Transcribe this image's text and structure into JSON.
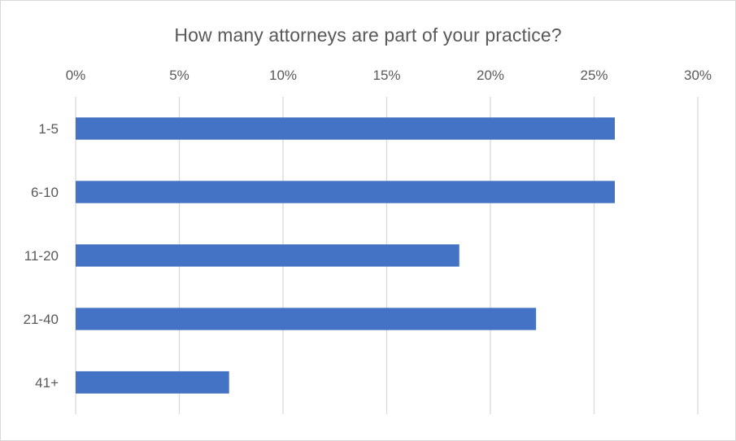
{
  "chart_data": {
    "type": "bar",
    "orientation": "horizontal",
    "title": "How many attorneys are part of your practice?",
    "categories": [
      "1-5",
      "6-10",
      "11-20",
      "21-40",
      "41+"
    ],
    "values": [
      26,
      26,
      18.5,
      22.2,
      7.4
    ],
    "value_unit": "%",
    "xlim": [
      0,
      30
    ],
    "x_ticks": [
      "0%",
      "5%",
      "10%",
      "15%",
      "20%",
      "25%",
      "30%"
    ],
    "x_tick_values": [
      0,
      5,
      10,
      15,
      20,
      25,
      30
    ],
    "axis_position": "top",
    "grid": true,
    "legend": "none",
    "colors": {
      "bar": "#4472c4",
      "grid": "#d9d9d9",
      "text": "#595959"
    }
  }
}
